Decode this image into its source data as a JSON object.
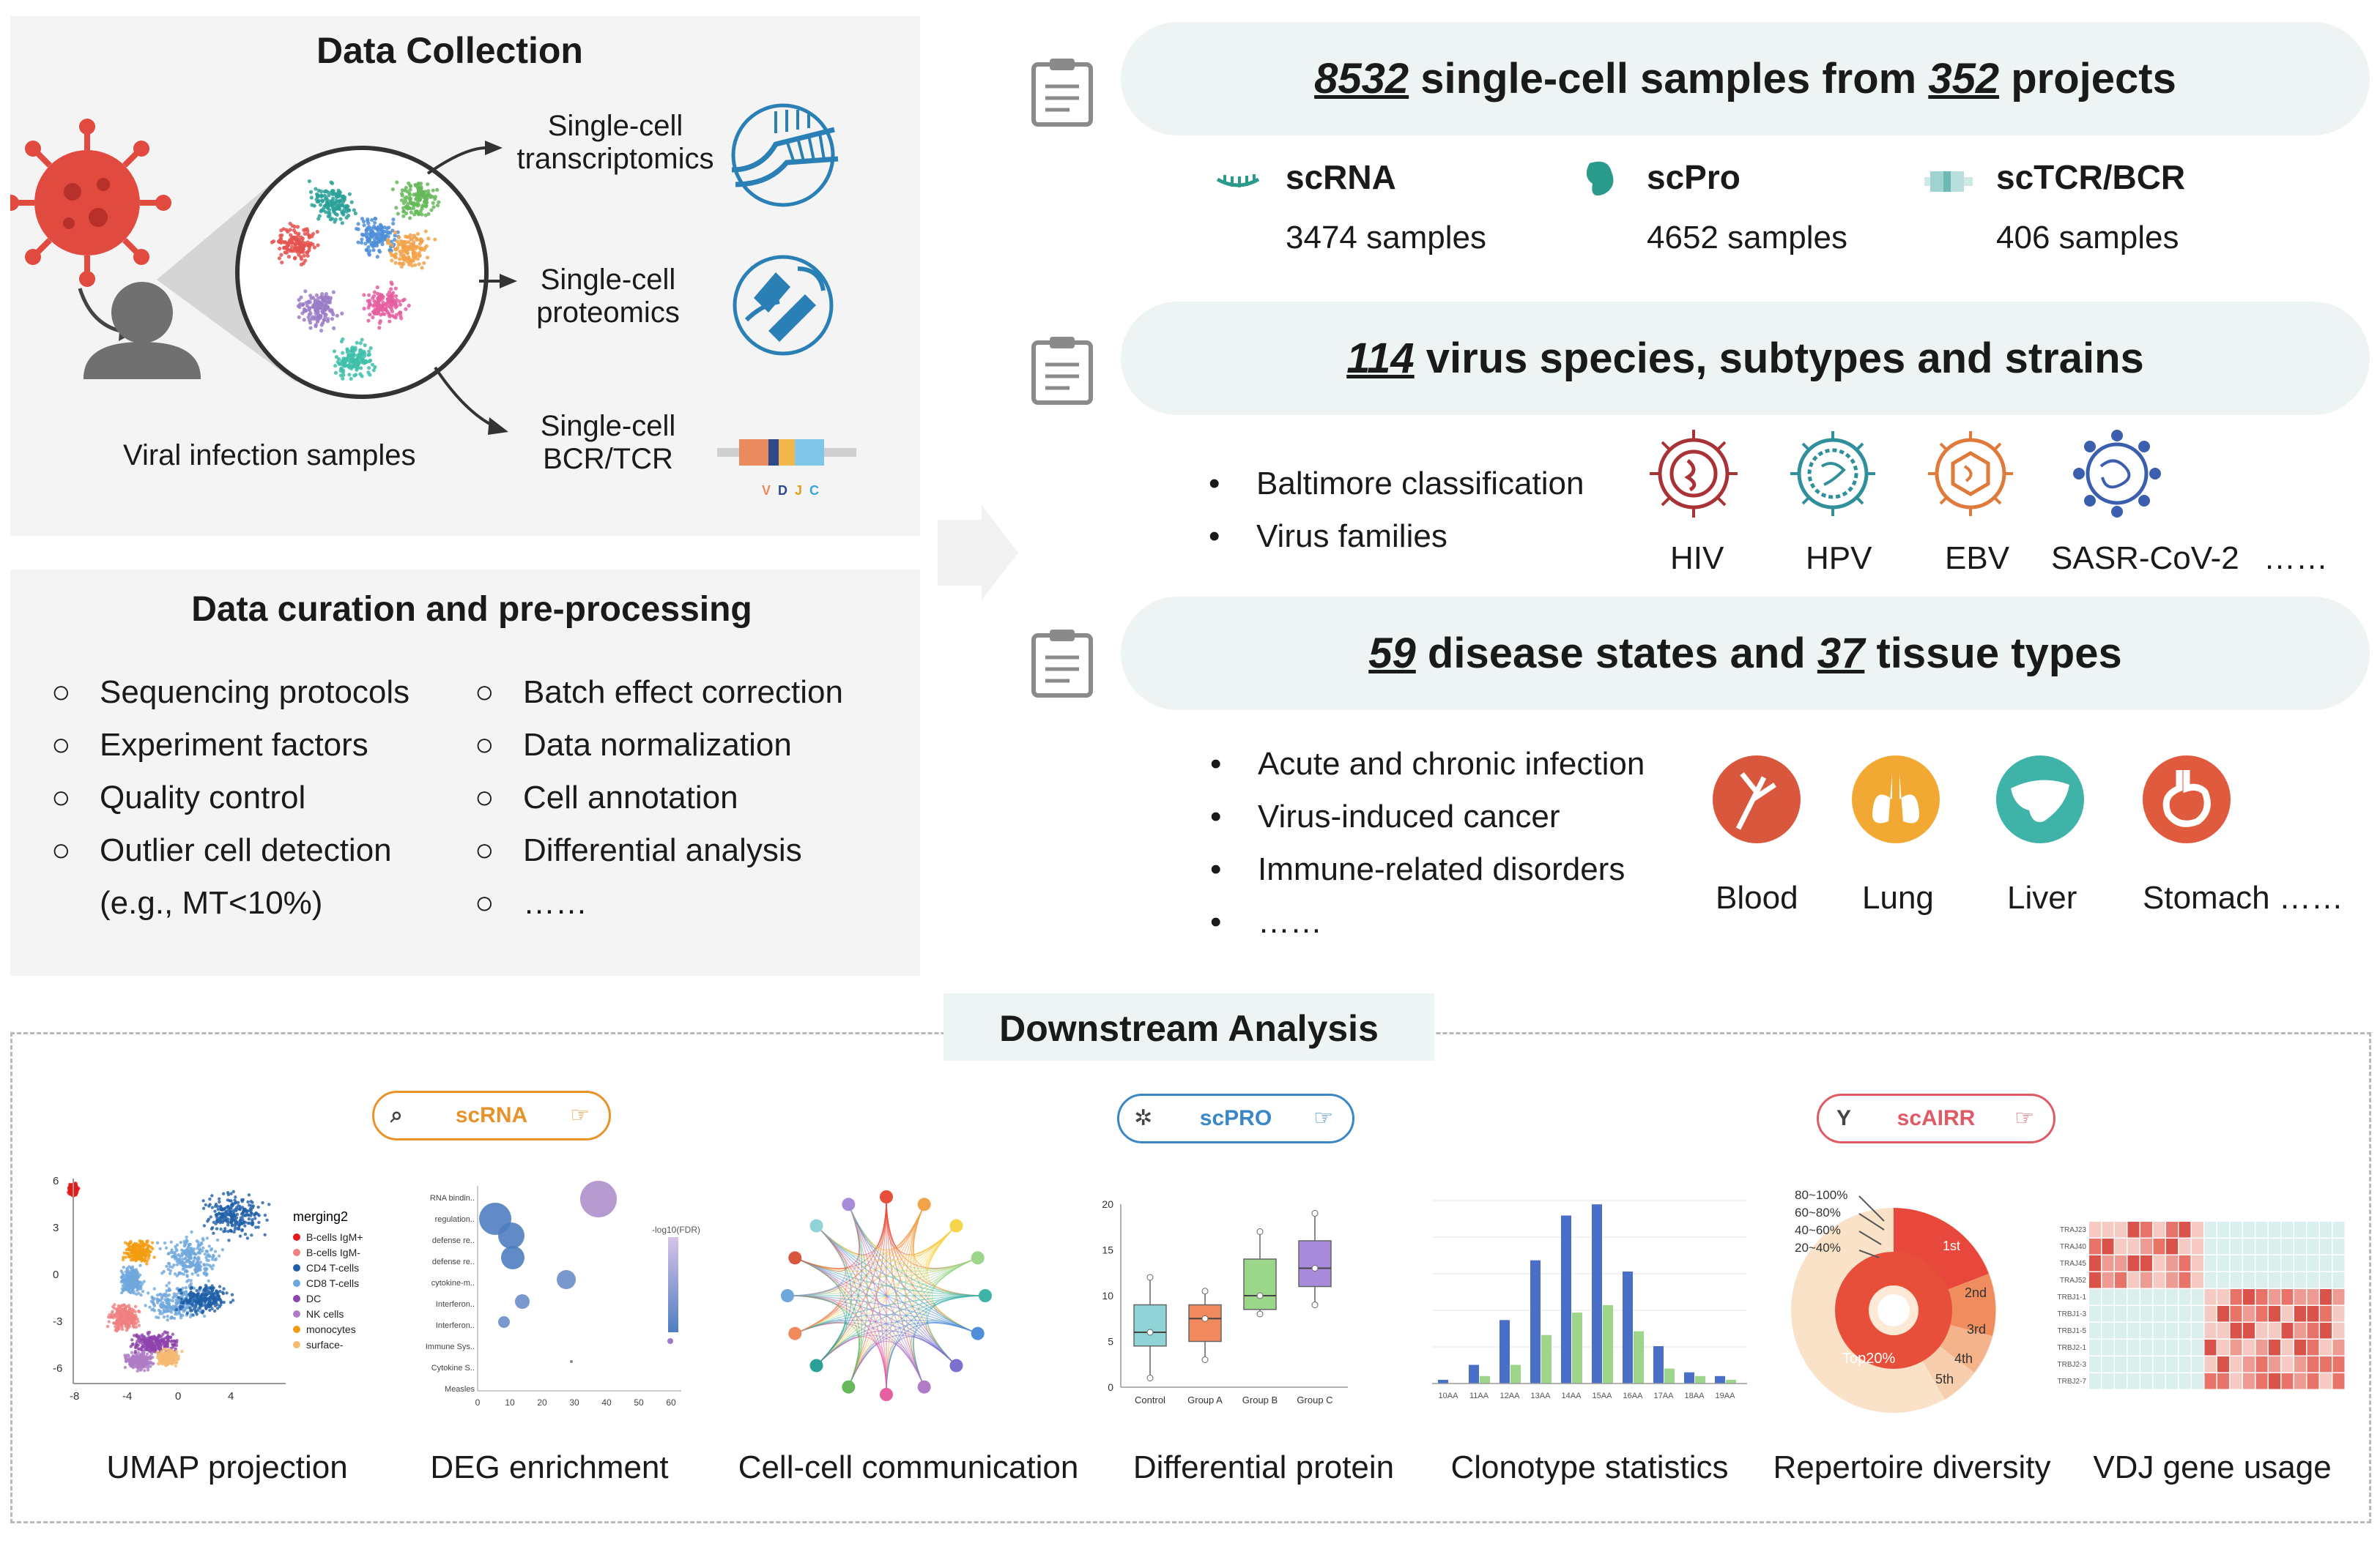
{
  "collection": {
    "title": "Data Collection",
    "sample_label": "Viral infection samples",
    "outputs": [
      {
        "line1": "Single-cell",
        "line2": "transcriptomics",
        "icon": "rna-strand-icon"
      },
      {
        "line1": "Single-cell",
        "line2": "proteomics",
        "icon": "protein-icon"
      },
      {
        "line1": "Single-cell",
        "line2": "BCR/TCR",
        "icon": "vdj-segment-icon"
      }
    ],
    "vdj_letters": [
      "V",
      "D",
      "J",
      "C"
    ]
  },
  "curation": {
    "title": "Data curation and pre-processing",
    "left_items": [
      "Sequencing protocols",
      "Experiment factors",
      "Quality control",
      "Outlier cell detection"
    ],
    "left_extra": "(e.g., MT<10%)",
    "right_items": [
      "Batch effect correction",
      "Data normalization",
      "Cell annotation",
      "Differential analysis",
      "……"
    ]
  },
  "summary": {
    "samples": {
      "count": "8532",
      "mid": " single-cell samples from ",
      "projects": "352",
      "tail": " projects"
    },
    "modalities": [
      {
        "name": "scRNA",
        "count": "3474 samples",
        "color": "#2a9a8a"
      },
      {
        "name": "scPro",
        "count": "4652 samples",
        "color": "#2a9a8a"
      },
      {
        "name": "scTCR/BCR",
        "count": "406 samples",
        "color": "#9fd3cf"
      }
    ],
    "virus": {
      "count": "114",
      "tail": " virus species, subtypes and strains"
    },
    "virus_bullets": [
      "Baltimore classification",
      "Virus families"
    ],
    "viruses": [
      "HIV",
      "HPV",
      "EBV",
      "SASR-CoV-2",
      "……"
    ],
    "disease": {
      "count1": "59",
      "mid": " disease states and ",
      "count2": "37",
      "tail": " tissue types"
    },
    "disease_bullets": [
      "Acute and chronic infection",
      "Virus-induced cancer",
      "Immune-related disorders",
      "……"
    ],
    "tissues": [
      "Blood",
      "Lung",
      "Liver",
      "Stomach ……"
    ]
  },
  "downstream": {
    "title": "Downstream Analysis",
    "tags": [
      {
        "label": "scRNA",
        "color": "#e8922a"
      },
      {
        "label": "scPRO",
        "color": "#3a86c6"
      },
      {
        "label": "scAIRR",
        "color": "#e05a66"
      }
    ],
    "captions": [
      "UMAP projection",
      "DEG enrichment",
      "Cell-cell communication",
      "Differential protein",
      "Clonotype statistics",
      "Repertoire diversity",
      "VDJ gene usage"
    ],
    "umap": {
      "legend_title": "merging2",
      "legend": [
        {
          "name": "B-cells IgM+",
          "color": "#e41a1c"
        },
        {
          "name": "B-cells IgM-",
          "color": "#f08080"
        },
        {
          "name": "CD4 T-cells",
          "color": "#1f5fa8"
        },
        {
          "name": "CD8 T-cells",
          "color": "#6fa8dc"
        },
        {
          "name": "DC",
          "color": "#8e44ad"
        },
        {
          "name": "NK cells",
          "color": "#b07cc6"
        },
        {
          "name": "monocytes",
          "color": "#f39c12"
        },
        {
          "name": "surface-",
          "color": "#f5b971"
        }
      ],
      "y_ticks": [
        "6",
        "3",
        "0",
        "-3",
        "-6"
      ],
      "x_ticks": [
        "-8",
        "-4",
        "0",
        "4"
      ]
    },
    "deg": {
      "terms": [
        "RNA bindin..",
        "regulation..",
        "defense re..",
        "defense re..",
        "cytokine-m..",
        "Interferon..",
        "Interferon..",
        "Immune Sys..",
        "Cytokine S..",
        "Measles"
      ],
      "x_ticks": [
        "0",
        "10",
        "20",
        "30",
        "40",
        "50",
        "60"
      ],
      "legend_title": "-log10(FDR)"
    },
    "protein": {
      "groups": [
        "Control",
        "Group A",
        "Group B",
        "Group C"
      ],
      "y_ticks": [
        "20",
        "15",
        "10",
        "5",
        "0"
      ],
      "colors": [
        "#8fd3d6",
        "#f08a5d",
        "#9bd68a",
        "#a98bdc"
      ]
    },
    "clonotype": {
      "categories": [
        "10AA",
        "11AA",
        "12AA",
        "13AA",
        "14AA",
        "15AA",
        "16AA",
        "17AA",
        "18AA",
        "19AA"
      ],
      "blue": [
        1,
        5,
        17,
        33,
        45,
        48,
        30,
        10,
        3,
        2
      ],
      "green": [
        0,
        2,
        5,
        13,
        19,
        21,
        14,
        4,
        2,
        1
      ],
      "colors": [
        "#4a6fc9",
        "#9dd68a"
      ]
    },
    "repertoire": {
      "legend": [
        "80~100%",
        "60~80%",
        "40~60%",
        "20~40%"
      ],
      "ranks": [
        "1st",
        "2nd",
        "3rd",
        "4th",
        "5th"
      ],
      "center": "Top20%"
    },
    "vdj": {
      "rows": [
        "TRAJ23",
        "TRAJ40",
        "TRAJ45",
        "TRAJ52",
        "TRBJ1-1",
        "TRBJ1-3",
        "TRBJ1-5",
        "TRBJ2-1",
        "TRBJ2-3",
        "TRBJ2-7"
      ]
    }
  }
}
